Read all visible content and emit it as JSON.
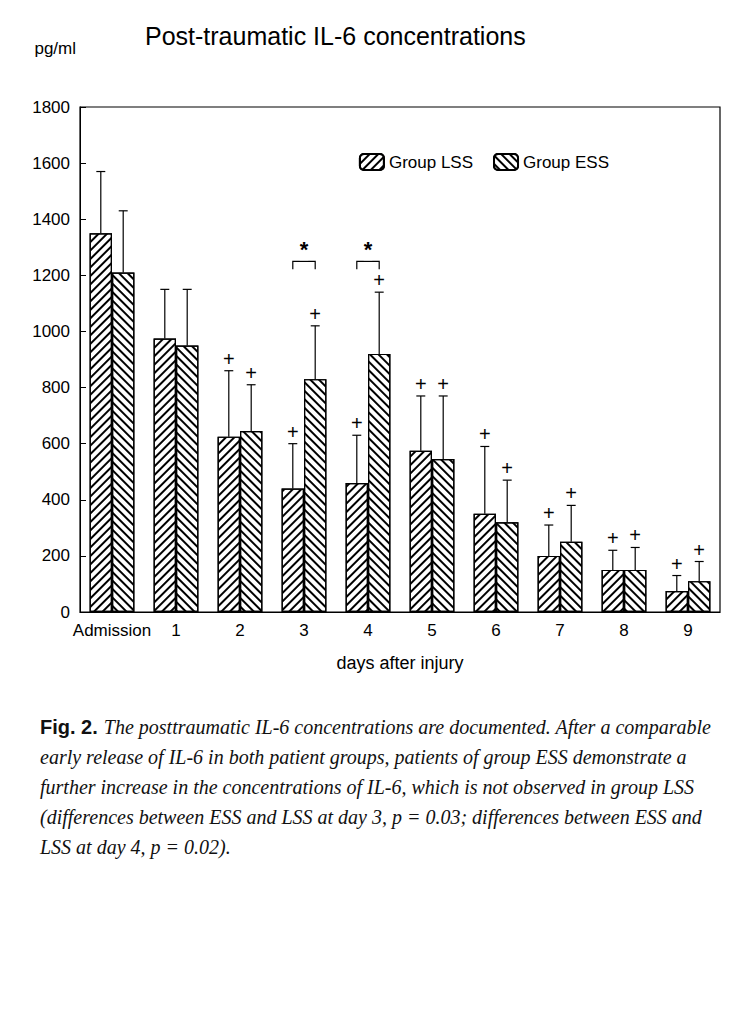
{
  "chart_data": {
    "type": "bar",
    "title": "Post-traumatic IL-6 concentrations",
    "y_label": "pg/ml",
    "x_label": "days after injury",
    "categories": [
      "Admission",
      "1",
      "2",
      "3",
      "4",
      "5",
      "6",
      "7",
      "8",
      "9"
    ],
    "series": [
      {
        "name": "Group LSS",
        "color": "#000000",
        "values": [
          1350,
          975,
          625,
          440,
          460,
          575,
          350,
          200,
          150,
          75
        ],
        "errors": [
          220,
          175,
          235,
          160,
          170,
          195,
          240,
          110,
          70,
          55
        ],
        "marks": [
          null,
          null,
          "+",
          "+",
          "+",
          "+",
          "+",
          "+",
          "+",
          "+"
        ]
      },
      {
        "name": "Group ESS",
        "color": "#000000",
        "values": [
          1210,
          950,
          645,
          830,
          920,
          545,
          320,
          250,
          150,
          110
        ],
        "errors": [
          220,
          200,
          165,
          190,
          220,
          225,
          150,
          130,
          80,
          70
        ],
        "marks": [
          null,
          null,
          "+",
          "+",
          "+",
          "+",
          "+",
          "+",
          "+",
          "+"
        ]
      }
    ],
    "significance": [
      {
        "category": "3",
        "label": "*",
        "y": 1250
      },
      {
        "category": "4",
        "label": "*",
        "y": 1250
      }
    ],
    "ylim": [
      0,
      1800
    ],
    "yticks": [
      0,
      200,
      400,
      600,
      800,
      1000,
      1200,
      1400,
      1600,
      1800
    ],
    "grid": false,
    "legend": "upper right",
    "caption_label": "Fig. 2.",
    "caption": "The posttraumatic IL-6 concentrations are documented. After a comparable early release of IL-6 in both patient groups, patients of group ESS demonstrate a further increase in the concentrations of IL-6, which is not observed in group LSS (differences between ESS and LSS at day 3, p = 0.03; differences between ESS and LSS at day 4, p = 0.02)."
  }
}
